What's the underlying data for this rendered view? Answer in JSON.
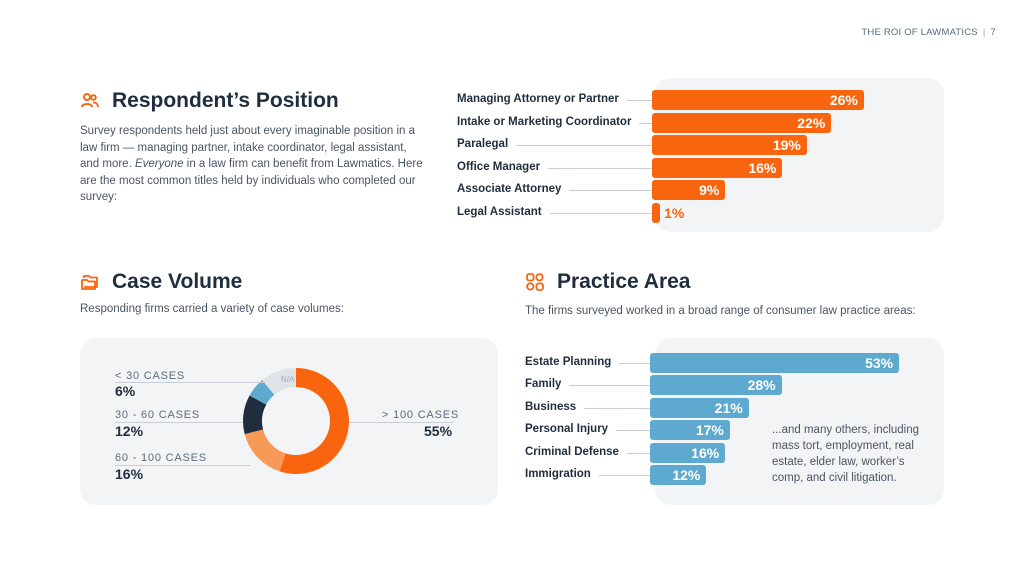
{
  "header": {
    "doc_title": "THE ROI OF LAWMATICS",
    "page_number": "7"
  },
  "colors": {
    "orange": "#f9650e",
    "orange_light": "#f89a57",
    "navy": "#1f2d3d",
    "blue": "#5ea9cf",
    "gray": "#dfe3e8"
  },
  "respondent": {
    "title": "Respondent’s Position",
    "icon": "people-icon",
    "text_a": "Survey respondents held just about every imaginable position in a law firm — managing partner, intake coordinator, legal assistant, and more. ",
    "text_em": "Everyone",
    "text_b": " in a law firm can benefit from Lawmatics. Here are the most common titles held by individuals who completed our survey:"
  },
  "case_volume": {
    "title": "Case Volume",
    "icon": "folder-icon",
    "text": "Responding firms carried a variety of case volumes:"
  },
  "practice_area": {
    "title": "Practice Area",
    "icon": "grid-icon",
    "text": "The firms surveyed worked in a broad range of consumer law practice areas:",
    "note": "...and many others, including mass tort, employment, real estate, elder law, worker’s comp, and civil litigation."
  },
  "chart_data": [
    {
      "type": "bar",
      "orientation": "horizontal",
      "categories": [
        "Managing Attorney or Partner",
        "Intake or Marketing Coordinator",
        "Paralegal",
        "Office Manager",
        "Associate Attorney",
        "Legal Assistant"
      ],
      "values": [
        26,
        22,
        19,
        16,
        9,
        1
      ],
      "value_labels": [
        "26%",
        "22%",
        "19%",
        "16%",
        "9%",
        "1%"
      ],
      "unit": "%",
      "color": "#f9650e"
    },
    {
      "type": "pie",
      "style": "donut",
      "labels": [
        "> 100 CASES",
        "60 - 100 CASES",
        "30 - 60 CASES",
        "< 30 CASES",
        "N/A"
      ],
      "values": [
        55,
        16,
        12,
        6,
        11
      ],
      "value_labels": [
        "55%",
        "16%",
        "12%",
        "6%",
        ""
      ],
      "colors": [
        "#f9650e",
        "#f89a57",
        "#1f2d3d",
        "#5ea9cf",
        "#dfe3e8"
      ]
    },
    {
      "type": "bar",
      "orientation": "horizontal",
      "categories": [
        "Estate Planning",
        "Family",
        "Business",
        "Personal Injury",
        "Criminal Defense",
        "Immigration"
      ],
      "values": [
        53,
        28,
        21,
        17,
        16,
        12
      ],
      "value_labels": [
        "53%",
        "28%",
        "21%",
        "17%",
        "16%",
        "12%"
      ],
      "unit": "%",
      "color": "#5ea9cf"
    }
  ]
}
